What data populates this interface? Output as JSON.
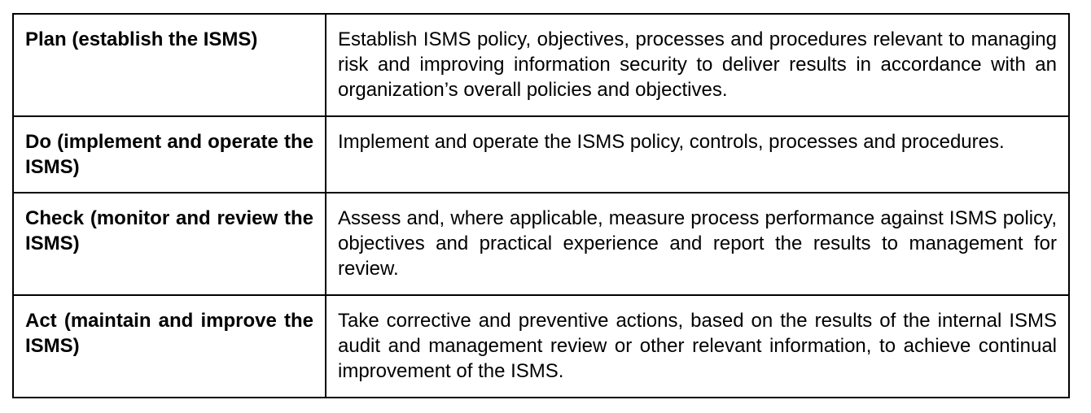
{
  "rows": [
    {
      "phase": "Plan (establish the ISMS)",
      "description": "Establish ISMS policy, objectives, processes and procedures relevant to managing risk and improving information security to deliver results in accordance with an organization’s overall policies and objectives."
    },
    {
      "phase": "Do (implement and operate the ISMS)",
      "description": "Implement and operate the ISMS policy, controls, processes and procedures."
    },
    {
      "phase": "Check (monitor and review the ISMS)",
      "description": "Assess and, where applicable, measure process performance against ISMS policy, objectives and practical experience and report the results to management for review."
    },
    {
      "phase": "Act (maintain and improve the ISMS)",
      "description": "Take corrective and preventive actions, based on the results of the internal ISMS audit and management review or other relevant information, to achieve continual improvement of the ISMS."
    }
  ]
}
